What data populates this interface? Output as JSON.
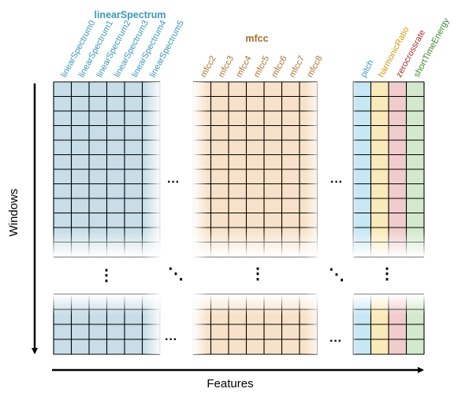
{
  "groups": {
    "linear": {
      "title": "linearSpectrum",
      "color": "#3b97b8",
      "fill": "#c7dde8",
      "columns": [
        "linearSpectrum0",
        "linearSpectrum1",
        "linearSpectrum2",
        "linearSpectrum3",
        "linearSpectrum4",
        "linearSpectrum5"
      ]
    },
    "mfcc": {
      "title": "mfcc",
      "color": "#a8712d",
      "fill": "#f7e2c9",
      "columns": [
        "mfcc2",
        "mfcc3",
        "mfcc4",
        "mfcc5",
        "mfcc6",
        "mfcc7",
        "mfcc8"
      ]
    },
    "single": [
      {
        "label": "pitch",
        "color": "#3b97b8",
        "fill": "#c7e7f5"
      },
      {
        "label": "harmonicRatio",
        "color": "#d09a0a",
        "fill": "#fbeab9"
      },
      {
        "label": "zerocrossrate",
        "color": "#b02a2a",
        "fill": "#f1cccc"
      },
      {
        "label": "shortTimeEnergy",
        "color": "#3d8a2f",
        "fill": "#d3e8cc"
      }
    ]
  },
  "axes": {
    "y_label": "Windows",
    "x_label": "Features"
  },
  "ellipsis": {
    "horizontal": "···",
    "vertical": "⋮",
    "diagonal": "⋱"
  }
}
